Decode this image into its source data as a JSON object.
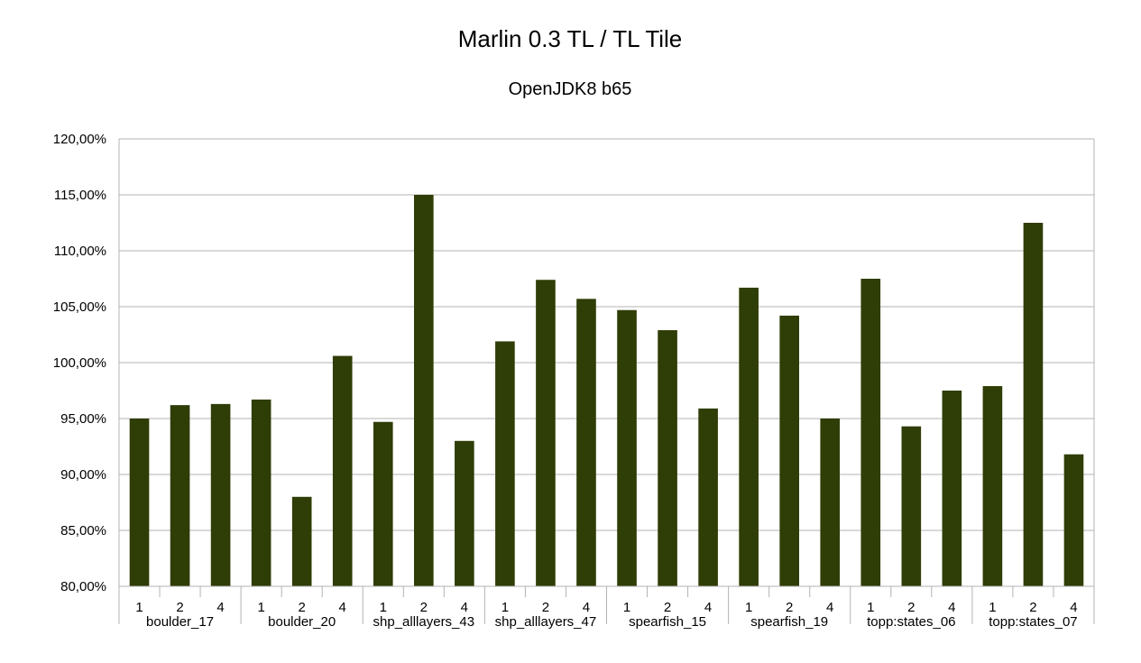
{
  "chart_data": {
    "type": "bar",
    "title": "Marlin 0.3 TL / TL Tile",
    "subtitle": "OpenJDK8 b65",
    "xlabel": "",
    "ylabel": "",
    "ylim": [
      80,
      120
    ],
    "y_ticks": [
      {
        "value": 80,
        "label": "80,00%"
      },
      {
        "value": 85,
        "label": "85,00%"
      },
      {
        "value": 90,
        "label": "90,00%"
      },
      {
        "value": 95,
        "label": "95,00%"
      },
      {
        "value": 100,
        "label": "100,00%"
      },
      {
        "value": 105,
        "label": "105,00%"
      },
      {
        "value": 110,
        "label": "110,00%"
      },
      {
        "value": 115,
        "label": "115,00%"
      },
      {
        "value": 120,
        "label": "120,00%"
      }
    ],
    "grid": true,
    "legend": "none",
    "bar_color": "#2f3d06",
    "groups": [
      {
        "name": "boulder_17",
        "categories": [
          "1",
          "2",
          "4"
        ],
        "values": [
          95.0,
          96.2,
          96.3
        ]
      },
      {
        "name": "boulder_20",
        "categories": [
          "1",
          "2",
          "4"
        ],
        "values": [
          96.7,
          88.0,
          100.6
        ]
      },
      {
        "name": "shp_alllayers_43",
        "categories": [
          "1",
          "2",
          "4"
        ],
        "values": [
          94.7,
          115.0,
          93.0
        ]
      },
      {
        "name": "shp_alllayers_47",
        "categories": [
          "1",
          "2",
          "4"
        ],
        "values": [
          101.9,
          107.4,
          105.7
        ]
      },
      {
        "name": "spearfish_15",
        "categories": [
          "1",
          "2",
          "4"
        ],
        "values": [
          104.7,
          102.9,
          95.9
        ]
      },
      {
        "name": "spearfish_19",
        "categories": [
          "1",
          "2",
          "4"
        ],
        "values": [
          106.7,
          104.2,
          95.0
        ]
      },
      {
        "name": "topp:states_06",
        "categories": [
          "1",
          "2",
          "4"
        ],
        "values": [
          107.5,
          94.3,
          97.5
        ]
      },
      {
        "name": "topp:states_07",
        "categories": [
          "1",
          "2",
          "4"
        ],
        "values": [
          97.9,
          112.5,
          91.8
        ]
      }
    ]
  }
}
